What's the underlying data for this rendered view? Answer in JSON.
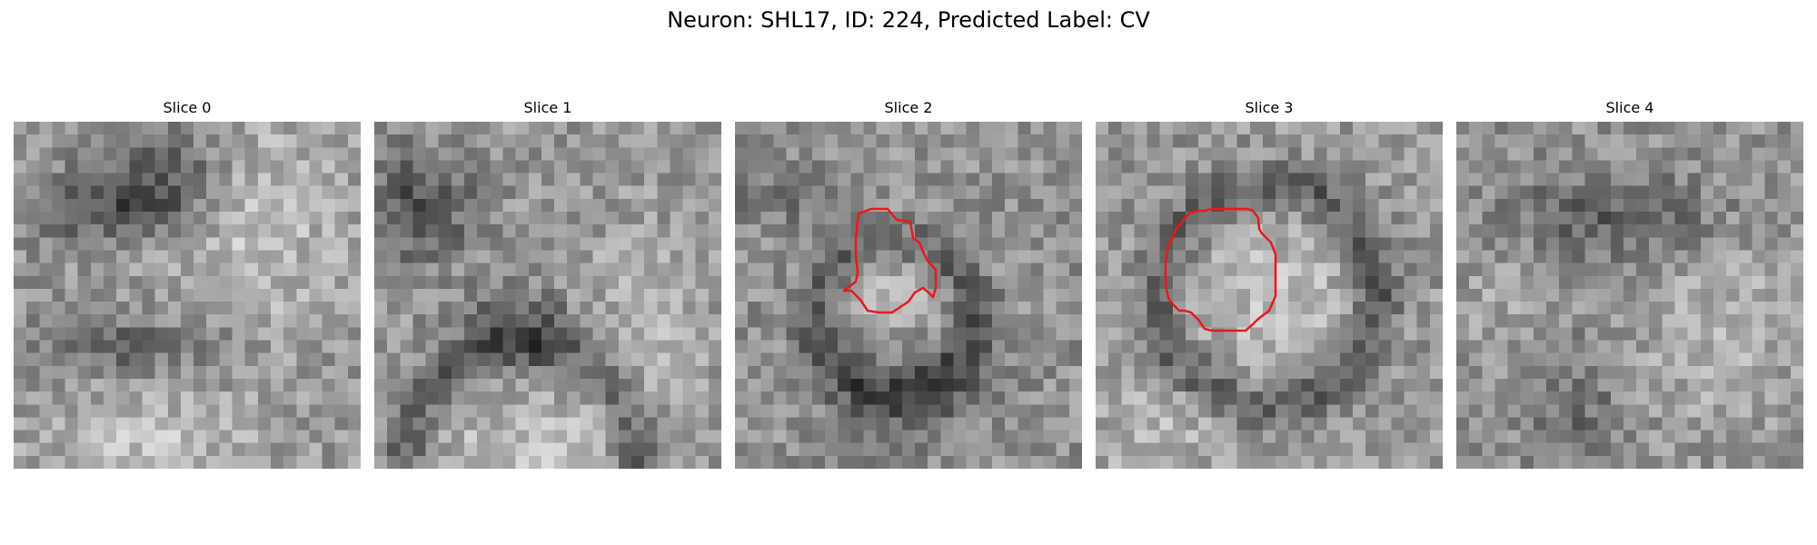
{
  "figure": {
    "title": "Neuron: SHL17, ID: 224, Predicted Label: CV"
  },
  "panels": [
    {
      "title": "Slice 0",
      "has_contour": false
    },
    {
      "title": "Slice 1",
      "has_contour": false
    },
    {
      "title": "Slice 2",
      "has_contour": true
    },
    {
      "title": "Slice 3",
      "has_contour": true
    },
    {
      "title": "Slice 4",
      "has_contour": false
    }
  ],
  "colors": {
    "contour": "#e8191b",
    "background": "#ffffff"
  }
}
